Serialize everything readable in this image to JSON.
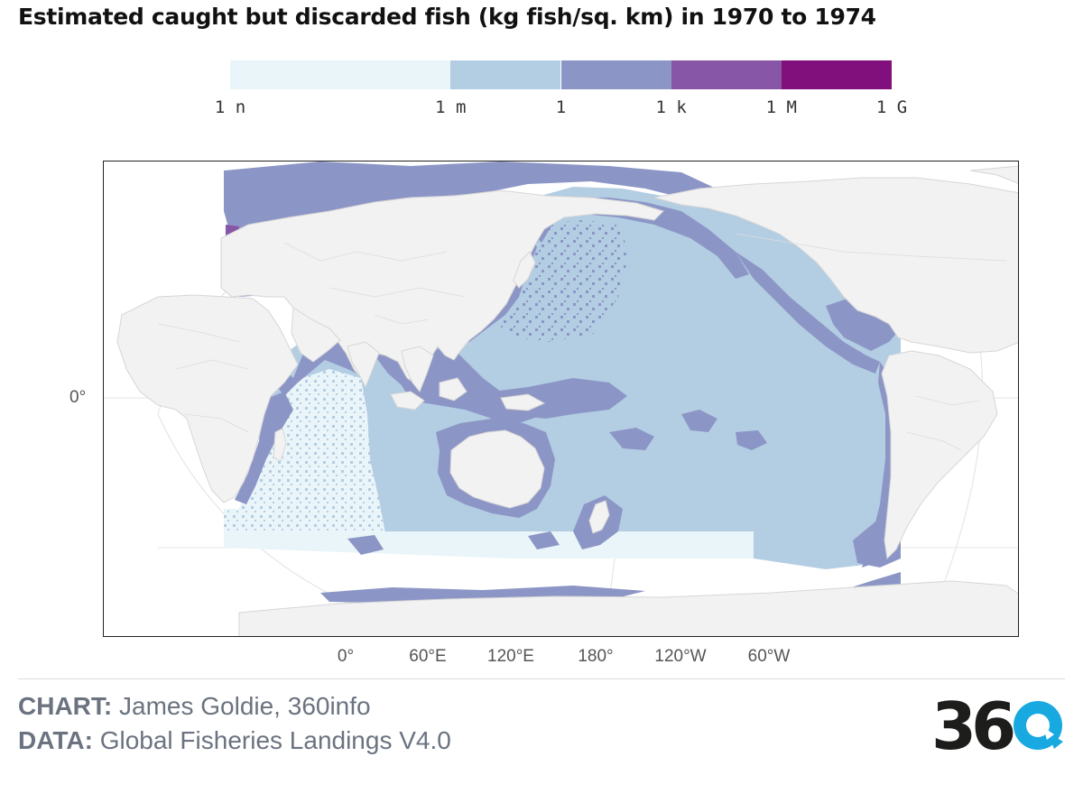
{
  "title": "Estimated caught but discarded fish (kg fish/sq. km) in 1970 to 1974",
  "legend": {
    "ticks": [
      "1 n",
      "1 m",
      "1",
      "1 k",
      "1 M",
      "1 G"
    ],
    "tick_values": [
      1e-09,
      0.001,
      1,
      1000.0,
      1000000.0,
      1000000000.0
    ],
    "scale": "log",
    "bins": [
      {
        "from": 1e-09,
        "to": 0.001,
        "color": "#eaf5f9"
      },
      {
        "from": 0.001,
        "to": 1,
        "color": "#b3cde3"
      },
      {
        "from": 1,
        "to": 1000.0,
        "color": "#8c96c6"
      },
      {
        "from": 1000.0,
        "to": 1000000.0,
        "color": "#8856a7"
      },
      {
        "from": 1000000.0,
        "to": 1000000000.0,
        "color": "#810f7c"
      }
    ]
  },
  "map": {
    "projection": "equirectangular, Pacific-centred",
    "land_color": "#f2f2f2",
    "border_color": "#d6d6d6",
    "x_labels": [
      "0°",
      "60°E",
      "120°E",
      "180°",
      "120°W",
      "60°W"
    ],
    "y_labels": [
      "0°"
    ]
  },
  "credits": {
    "chart_label": "CHART:",
    "chart_value": "James Goldie, 360info",
    "data_label": "DATA:",
    "data_value": "Global Fisheries Landings V4.0"
  },
  "logo": {
    "text": "360",
    "dark_color": "#1d1d1b",
    "accent_color": "#19a9e1"
  }
}
